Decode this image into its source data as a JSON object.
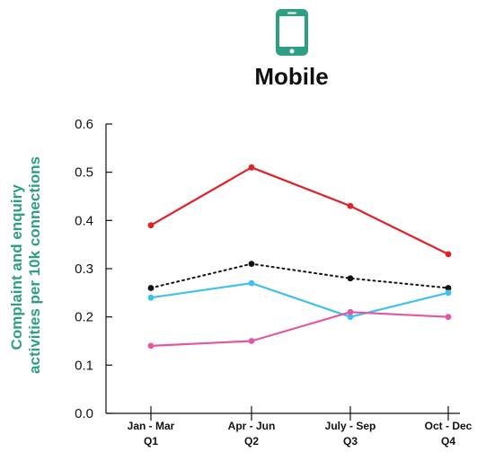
{
  "header": {
    "title": "Mobile",
    "icon": "mobile-phone-icon",
    "icon_color": "#2E9E84"
  },
  "chart_data": {
    "type": "line",
    "title": "Mobile",
    "xlabel": "",
    "ylabel": "Complaint and enquiry activities per 10k connections",
    "ylabel_lines": [
      "Complaint and enquiry",
      "activities per 10k connections"
    ],
    "ylabel_color": "#2E9E84",
    "ylim": [
      0,
      0.6
    ],
    "yticks": [
      "0.0",
      "0.1",
      "0.2",
      "0.3",
      "0.4",
      "0.5",
      "0.6"
    ],
    "categories": [
      "Jan - Mar\nQ1",
      "Apr - Jun\nQ2",
      "July - Sep\nQ3",
      "Oct - Dec\nQ4"
    ],
    "category_lines": [
      [
        "Jan - Mar",
        "Q1"
      ],
      [
        "Apr - Jun",
        "Q2"
      ],
      [
        "July - Sep",
        "Q3"
      ],
      [
        "Oct - Dec",
        "Q4"
      ]
    ],
    "grid": false,
    "legend": "none",
    "series": [
      {
        "color": "#E02128",
        "style": "solid",
        "values": [
          0.39,
          0.51,
          0.43,
          0.33
        ]
      },
      {
        "color": "#111111",
        "style": "dotted",
        "values": [
          0.26,
          0.31,
          0.28,
          0.26
        ]
      },
      {
        "color": "#3EC1EE",
        "style": "solid",
        "values": [
          0.24,
          0.27,
          0.2,
          0.25
        ]
      },
      {
        "color": "#E4579F",
        "style": "solid",
        "values": [
          0.14,
          0.15,
          0.21,
          0.2
        ]
      }
    ]
  }
}
